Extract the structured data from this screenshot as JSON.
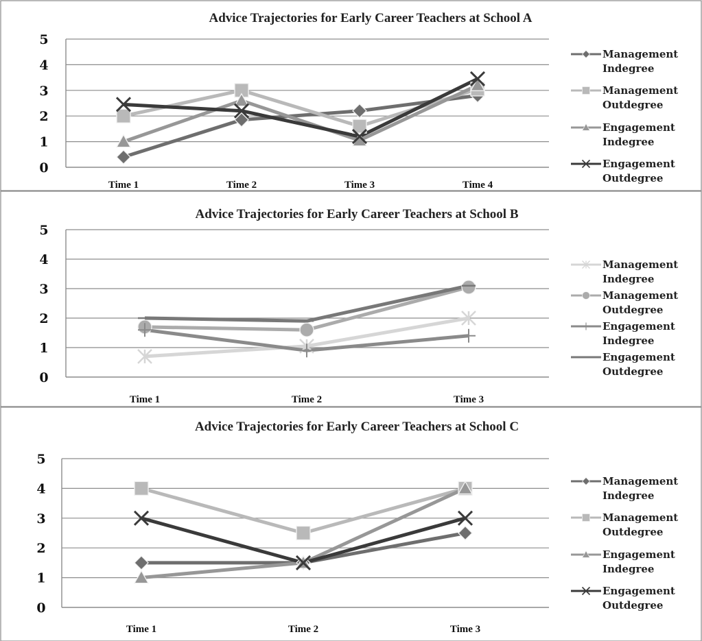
{
  "chart_data": [
    {
      "type": "line",
      "title": "Advice Trajectories for Early Career Teachers at School A",
      "categories": [
        "Time 1",
        "Time 2",
        "Time 3",
        "Time 4"
      ],
      "ylim": [
        0,
        5
      ],
      "yticks": [
        "0",
        "1",
        "2",
        "3",
        "4",
        "5"
      ],
      "grid": true,
      "legend_position": "right",
      "series": [
        {
          "name": [
            "Management",
            "Indegree"
          ],
          "values": [
            0.4,
            1.85,
            2.2,
            2.8
          ],
          "color": "#6e6e6e",
          "marker": "diamond"
        },
        {
          "name": [
            "Management",
            "Outdegree"
          ],
          "values": [
            2.0,
            3.0,
            1.6,
            3.05
          ],
          "color": "#b9b9b9",
          "marker": "square"
        },
        {
          "name": [
            "Engagement",
            "Indegree"
          ],
          "values": [
            1.0,
            2.6,
            1.05,
            3.2
          ],
          "color": "#979797",
          "marker": "triangle"
        },
        {
          "name": [
            "Engagement",
            "Outdegree"
          ],
          "values": [
            2.45,
            2.2,
            1.2,
            3.45
          ],
          "color": "#3a3a3a",
          "marker": "x"
        }
      ]
    },
    {
      "type": "line",
      "title": "Advice Trajectories for Early Career Teachers at School B",
      "categories": [
        "Time 1",
        "Time 2",
        "Time 3"
      ],
      "ylim": [
        0,
        5
      ],
      "yticks": [
        "0",
        "1",
        "2",
        "3",
        "4",
        "5"
      ],
      "grid": true,
      "legend_position": "right",
      "series": [
        {
          "name": [
            "Management",
            "Indegree"
          ],
          "values": [
            0.7,
            1.05,
            2.0
          ],
          "color": "#d6d6d6",
          "marker": "star"
        },
        {
          "name": [
            "Management",
            "Outdegree"
          ],
          "values": [
            1.7,
            1.6,
            3.05
          ],
          "color": "#ababab",
          "marker": "circle"
        },
        {
          "name": [
            "Engagement",
            "Indegree"
          ],
          "values": [
            1.6,
            0.9,
            1.4
          ],
          "color": "#8a8a8a",
          "marker": "plus"
        },
        {
          "name": [
            "Engagement",
            "Outdegree"
          ],
          "values": [
            2.0,
            1.9,
            3.1
          ],
          "color": "#787878",
          "marker": "dash"
        }
      ]
    },
    {
      "type": "line",
      "title": "Advice Trajectories for Early Career Teachers at School C",
      "categories": [
        "Time 1",
        "Time 2",
        "Time 3"
      ],
      "ylim": [
        0,
        5
      ],
      "yticks": [
        "0",
        "1",
        "2",
        "3",
        "4",
        "5"
      ],
      "grid": true,
      "legend_position": "right",
      "series": [
        {
          "name": [
            "Management",
            "Indegree"
          ],
          "values": [
            1.5,
            1.5,
            2.5
          ],
          "color": "#6e6e6e",
          "marker": "diamond"
        },
        {
          "name": [
            "Management",
            "Outdegree"
          ],
          "values": [
            4.0,
            2.5,
            4.0
          ],
          "color": "#b9b9b9",
          "marker": "square"
        },
        {
          "name": [
            "Engagement",
            "Indegree"
          ],
          "values": [
            1.0,
            1.5,
            4.0
          ],
          "color": "#979797",
          "marker": "triangle"
        },
        {
          "name": [
            "Engagement",
            "Outdegree"
          ],
          "values": [
            3.0,
            1.5,
            3.0
          ],
          "color": "#3a3a3a",
          "marker": "x"
        }
      ]
    }
  ]
}
